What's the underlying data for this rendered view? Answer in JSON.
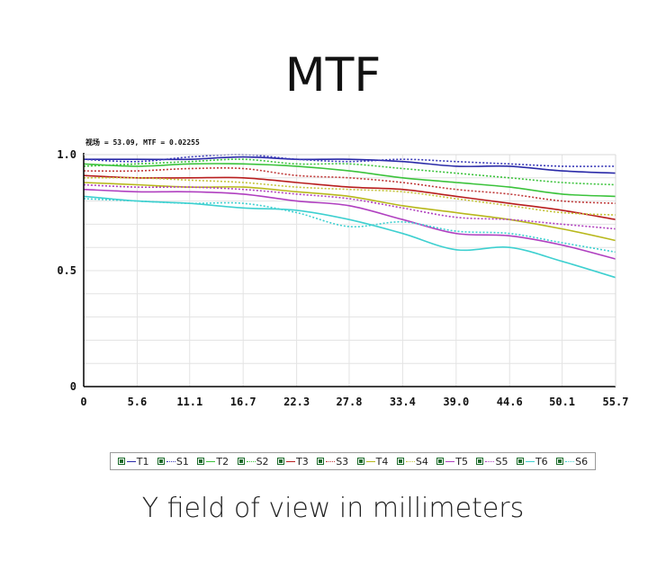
{
  "title": "MTF",
  "xlabel": "Y field of view in millimeters",
  "chart_data": {
    "type": "line",
    "annotation": "视场 = 53.09, MTF = 0.02255",
    "x_ticks": [
      "0",
      "5.6",
      "11.1",
      "16.7",
      "22.3",
      "27.8",
      "33.4",
      "39.0",
      "44.6",
      "50.1",
      "55.7"
    ],
    "y_ticks": [
      "0",
      "0.5",
      "1.0"
    ],
    "xlim": [
      0,
      55.7
    ],
    "ylim": [
      0,
      1.0
    ],
    "grid": true,
    "legend": "bottom",
    "x": [
      0,
      5.6,
      11.1,
      16.7,
      22.3,
      27.8,
      33.4,
      39.0,
      44.6,
      50.1,
      55.7
    ],
    "series": [
      {
        "name": "T1",
        "color": "#2a2aa8",
        "dash": "solid",
        "values": [
          0.98,
          0.98,
          0.98,
          0.99,
          0.98,
          0.98,
          0.97,
          0.95,
          0.95,
          0.93,
          0.92
        ]
      },
      {
        "name": "S1",
        "color": "#3a3ab8",
        "dash": "dotted",
        "values": [
          0.98,
          0.97,
          0.99,
          1.0,
          0.98,
          0.97,
          0.98,
          0.97,
          0.96,
          0.95,
          0.95
        ]
      },
      {
        "name": "T2",
        "color": "#3cc33c",
        "dash": "solid",
        "values": [
          0.96,
          0.95,
          0.96,
          0.96,
          0.95,
          0.93,
          0.9,
          0.88,
          0.86,
          0.83,
          0.82
        ]
      },
      {
        "name": "S2",
        "color": "#3cc33c",
        "dash": "dotted",
        "values": [
          0.95,
          0.96,
          0.97,
          0.98,
          0.96,
          0.96,
          0.94,
          0.92,
          0.9,
          0.88,
          0.87
        ]
      },
      {
        "name": "T3",
        "color": "#b81e1e",
        "dash": "solid",
        "values": [
          0.91,
          0.9,
          0.9,
          0.9,
          0.88,
          0.86,
          0.85,
          0.82,
          0.79,
          0.76,
          0.72
        ]
      },
      {
        "name": "S3",
        "color": "#c03a3a",
        "dash": "dotted",
        "values": [
          0.93,
          0.93,
          0.94,
          0.94,
          0.91,
          0.9,
          0.88,
          0.85,
          0.83,
          0.8,
          0.79
        ]
      },
      {
        "name": "T4",
        "color": "#b8b81c",
        "dash": "solid",
        "values": [
          0.88,
          0.87,
          0.86,
          0.86,
          0.84,
          0.82,
          0.78,
          0.75,
          0.72,
          0.68,
          0.63
        ]
      },
      {
        "name": "S4",
        "color": "#c4c43a",
        "dash": "dotted",
        "values": [
          0.9,
          0.9,
          0.89,
          0.88,
          0.86,
          0.85,
          0.84,
          0.81,
          0.78,
          0.75,
          0.74
        ]
      },
      {
        "name": "T5",
        "color": "#b040c0",
        "dash": "solid",
        "values": [
          0.85,
          0.84,
          0.84,
          0.83,
          0.8,
          0.78,
          0.72,
          0.66,
          0.65,
          0.61,
          0.55
        ]
      },
      {
        "name": "S5",
        "color": "#b040c0",
        "dash": "dotted",
        "values": [
          0.87,
          0.86,
          0.86,
          0.85,
          0.83,
          0.81,
          0.77,
          0.73,
          0.72,
          0.7,
          0.68
        ]
      },
      {
        "name": "T6",
        "color": "#3ed0d0",
        "dash": "solid",
        "values": [
          0.82,
          0.8,
          0.79,
          0.77,
          0.76,
          0.72,
          0.66,
          0.59,
          0.6,
          0.54,
          0.47
        ]
      },
      {
        "name": "S6",
        "color": "#3ed0d0",
        "dash": "dotted",
        "values": [
          0.81,
          0.8,
          0.79,
          0.79,
          0.75,
          0.69,
          0.71,
          0.67,
          0.66,
          0.62,
          0.58
        ]
      }
    ]
  }
}
